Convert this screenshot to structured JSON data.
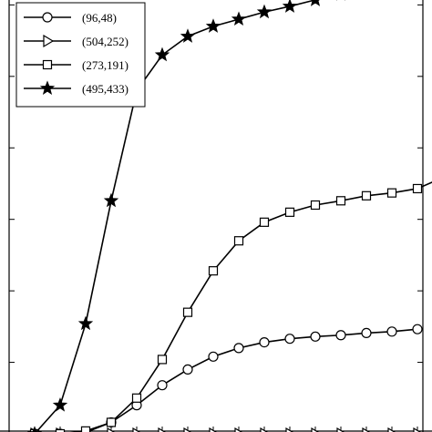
{
  "chart_data": {
    "type": "line",
    "title": "",
    "xlabel": "",
    "ylabel": "",
    "x": [
      0,
      1,
      2,
      3,
      4,
      5,
      6,
      7,
      8,
      9,
      10,
      11,
      12,
      13,
      14,
      15,
      16
    ],
    "ylim": [
      0,
      0.32
    ],
    "y_ticks": [
      0,
      0.05,
      0.1,
      0.15,
      0.2,
      0.25,
      0.3
    ],
    "grid": false,
    "legend_position": "top-left",
    "series": [
      {
        "name": "(96,48)",
        "marker": "circle",
        "values": [
          0,
          0,
          0.001,
          0.008,
          0.02,
          0.034,
          0.045,
          0.054,
          0.06,
          0.064,
          0.0665,
          0.068,
          0.069,
          0.0705,
          0.0715,
          0.0732,
          null
        ]
      },
      {
        "name": "(504,252)",
        "marker": "triangle-right",
        "values": [
          0,
          0,
          0,
          0,
          0,
          0,
          0,
          0,
          0,
          0,
          0,
          0,
          0,
          0,
          0,
          0,
          0
        ]
      },
      {
        "name": "(273,191)",
        "marker": "square",
        "values": [
          0,
          0,
          0.002,
          0.008,
          0.025,
          0.052,
          0.085,
          0.114,
          0.135,
          0.148,
          0.155,
          0.16,
          0.163,
          0.1665,
          0.1685,
          0.1715,
          null
        ]
      },
      {
        "name": "(495,433)",
        "marker": "star",
        "values": [
          0,
          0.02,
          0.077,
          0.163,
          0.24,
          0.265,
          0.278,
          0.285,
          0.29,
          0.295,
          0.299,
          0.3035,
          0.3075,
          0.3105,
          0.3125,
          0.3155,
          null
        ]
      }
    ],
    "extra_points": [
      {
        "series": "(273,191)",
        "x": 15.9,
        "y": 0.1785
      }
    ]
  }
}
